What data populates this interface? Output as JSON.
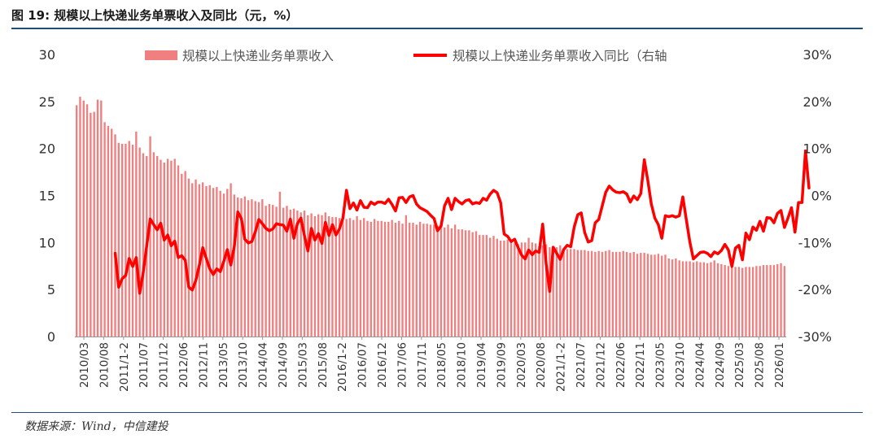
{
  "header": {
    "title": "图 19: 规模以上快递业务单票收入及同比（元，%）"
  },
  "footer": {
    "source": "数据来源：Wind，中信建投"
  },
  "chart_data": {
    "type": "bar+line",
    "title": "规模以上快递业务单票收入及同比（元，%）",
    "legend": [
      "规模以上快递业务单票收入",
      "规模以上快递业务单票收入同比（右轴"
    ],
    "legend_position": "top",
    "grid": false,
    "left_axis": {
      "min": 0,
      "max": 30,
      "ticks": [
        "0",
        "5",
        "10",
        "15",
        "20",
        "25",
        "30"
      ]
    },
    "right_axis": {
      "min": -30,
      "max": 30,
      "ticks": [
        "-30%",
        "-20%",
        "-10%",
        "0%",
        "10%",
        "20%",
        "30%"
      ]
    },
    "x_tick_labels": [
      "2010/03",
      "2010/08",
      "2011/1-2",
      "2011/07",
      "2011/12",
      "2012/06",
      "2012/11",
      "2013/05",
      "2013/10",
      "2014/04",
      "2014/09",
      "2015/03",
      "2015/08",
      "2016/1-2",
      "2016/07",
      "2016/12",
      "2017/06",
      "2017/11",
      "2018/05",
      "2018/10",
      "2019/04",
      "2019/09",
      "2020/03",
      "2020/08",
      "2021/1-2",
      "2021/07",
      "2021/12",
      "2022/06",
      "2022/11",
      "2023/05",
      "2023/10",
      "2024/04",
      "2024/09",
      "2025/03",
      "2025/08",
      "2026/01"
    ],
    "series": [
      {
        "name": "规模以上快递业务单票收入",
        "type": "bar",
        "axis": "left",
        "color": "#f08080",
        "values": [
          24.6,
          25.5,
          25.1,
          24.7,
          23.8,
          23.9,
          25.2,
          25.1,
          22.8,
          22.4,
          22.1,
          21.5,
          20.6,
          20.5,
          20.5,
          20.8,
          20.4,
          21.8,
          20.1,
          19.5,
          19.2,
          21.3,
          19.6,
          19.2,
          18.8,
          18.5,
          18.9,
          18.7,
          18.9,
          18.2,
          17.3,
          17.6,
          16.8,
          16.3,
          16.7,
          16.2,
          16.4,
          16.0,
          16.1,
          15.8,
          15.9,
          15.5,
          15.2,
          15.7,
          16.3,
          15.1,
          14.8,
          14.7,
          14.9,
          14.5,
          14.6,
          14.4,
          14.3,
          14.6,
          13.9,
          14.1,
          14.0,
          13.8,
          15.4,
          13.7,
          13.9,
          13.5,
          13.6,
          13.4,
          13.2,
          13.4,
          12.9,
          13.1,
          12.8,
          13.0,
          12.9,
          13.2,
          12.8,
          12.7,
          12.7,
          12.6,
          12.9,
          12.5,
          12.6,
          12.4,
          12.8,
          12.4,
          12.6,
          12.3,
          12.2,
          12.5,
          12.3,
          12.3,
          12.2,
          12.2,
          12.4,
          12.1,
          12.3,
          12.0,
          12.9,
          12.1,
          12.1,
          11.9,
          12.2,
          12.0,
          12.0,
          11.9,
          11.9,
          11.8,
          11.9,
          11.6,
          11.9,
          11.5,
          11.9,
          11.4,
          11.4,
          11.3,
          11.3,
          11.1,
          11.2,
          10.8,
          10.8,
          10.8,
          10.5,
          10.7,
          10.4,
          10.2,
          10.2,
          10.3,
          10.2,
          10.0,
          9.8,
          10.0,
          10.0,
          10.5,
          10.0,
          9.9,
          9.6,
          9.7,
          9.8,
          9.5,
          9.5,
          9.5,
          9.7,
          9.4,
          9.3,
          9.3,
          9.3,
          9.2,
          9.2,
          9.2,
          9.1,
          9.1,
          9.0,
          9.1,
          9.0,
          9.1,
          9.2,
          9.0,
          9.0,
          9.0,
          9.1,
          9.0,
          8.9,
          9.0,
          8.8,
          8.9,
          8.9,
          8.8,
          8.7,
          8.7,
          8.8,
          8.6,
          8.7,
          8.3,
          8.2,
          8.3,
          8.1,
          8.0,
          8.0,
          8.0,
          7.9,
          8.0,
          7.9,
          7.9,
          7.8,
          7.9,
          8.1,
          7.8,
          7.7,
          7.6,
          7.5,
          7.4,
          7.4,
          7.4,
          7.3,
          7.4,
          7.4,
          7.4,
          7.5,
          7.5,
          7.6,
          7.6,
          7.6,
          7.6,
          7.7,
          7.8,
          7.5
        ]
      },
      {
        "name": "规模以上快递业务单票收入同比（右轴",
        "type": "line",
        "axis": "right",
        "color": "#ff0000",
        "start_index": 11,
        "values": [
          -12.3,
          -19.5,
          -17.7,
          -17.0,
          -13.4,
          -15.1,
          -13.2,
          -20.8,
          -16.4,
          -10.7,
          -5.0,
          -6.2,
          -7.3,
          -5.9,
          -9.5,
          -8.4,
          -10.7,
          -9.7,
          -13.2,
          -12.8,
          -13.8,
          -19.5,
          -20.1,
          -18.1,
          -14.9,
          -11.1,
          -13.4,
          -15.6,
          -16.8,
          -15.6,
          -16.2,
          -14.0,
          -11.5,
          -14.8,
          -10.8,
          -3.5,
          -4.9,
          -9.3,
          -10.1,
          -9.8,
          -7.7,
          -5.1,
          -6.0,
          -7.0,
          -7.5,
          -7.1,
          -6.0,
          -6.2,
          -6.3,
          -7.6,
          -5.0,
          -9.1,
          -6.0,
          -4.8,
          -8.5,
          -11.8,
          -7.0,
          -9.5,
          -8.1,
          -10.2,
          -5.7,
          -8.5,
          -6.2,
          -8.4,
          -7.1,
          -4.8,
          1.1,
          -2.8,
          -1.6,
          -3.1,
          -1.1,
          -2.5,
          -2.6,
          -1.4,
          -1.9,
          -1.4,
          -1.4,
          -1.7,
          -0.8,
          -1.9,
          -3.3,
          -0.5,
          -0.4,
          -1.5,
          -0.3,
          0.0,
          -1.8,
          -2.6,
          -3.0,
          -3.4,
          -4.2,
          -4.9,
          -7.5,
          -6.5,
          -2.2,
          -0.6,
          -3.0,
          -0.6,
          -1.3,
          -1.8,
          -1.1,
          -0.9,
          -1.8,
          -1.5,
          -1.7,
          -0.6,
          -1.0,
          0.3,
          1.1,
          0.6,
          -1.5,
          -8.2,
          -8.7,
          -9.8,
          -9.3,
          -11.1,
          -12.7,
          -13.5,
          -11.6,
          -12.6,
          -11.8,
          -12.1,
          -6.1,
          -14.6,
          -20.4,
          -11.0,
          -12.3,
          -13.6,
          -11.5,
          -10.6,
          -10.9,
          -6.7,
          -4.1,
          -3.7,
          -7.9,
          -9.9,
          -9.6,
          -5.8,
          -5.1,
          -2.2,
          0.7,
          2.0,
          1.2,
          0.7,
          0.6,
          0.8,
          0.3,
          -1.4,
          -0.1,
          -0.9,
          0.4,
          7.6,
          3.2,
          -1.8,
          -4.8,
          -6.2,
          -9.1,
          -4.3,
          -4.5,
          -4.3,
          -4.6,
          -4.3,
          -0.3,
          -5.2,
          -9.9,
          -13.5,
          -12.8,
          -12.1,
          -12.0,
          -12.3,
          -13.0,
          -12.0,
          -12.4,
          -11.7,
          -10.4,
          -11.6,
          -15.1,
          -11.2,
          -10.6,
          -13.7,
          -8.0,
          -9.4,
          -6.7,
          -7.4,
          -5.5,
          -7.6,
          -4.7,
          -4.8,
          -5.8,
          -3.8,
          -3.2,
          -6.8,
          -4.8,
          -2.6,
          -7.8,
          -1.5,
          -1.5,
          9.5,
          1.6
        ]
      }
    ]
  }
}
